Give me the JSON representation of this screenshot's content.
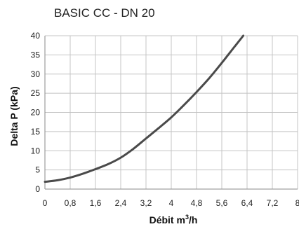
{
  "chart_data": {
    "type": "line",
    "title": "BASIC CC - DN 20",
    "xlabel_main": "Débit m",
    "xlabel_sup": "3",
    "xlabel_tail": "/h",
    "ylabel": "Delta P (kPa)",
    "xlim": [
      0,
      8
    ],
    "ylim": [
      0,
      40
    ],
    "x_ticks": [
      "0",
      "0,8",
      "1,6",
      "2,4",
      "3,2",
      "4",
      "4,8",
      "5,6",
      "6,4",
      "7,2",
      "8"
    ],
    "y_ticks": [
      "0",
      "5",
      "10",
      "15",
      "20",
      "25",
      "30",
      "35",
      "40"
    ],
    "grid": true,
    "series": [
      {
        "color": "#4a4a4a",
        "x": [
          0,
          0.4,
          0.8,
          1.2,
          1.6,
          2.0,
          2.4,
          2.8,
          3.2,
          3.6,
          4.0,
          4.4,
          4.8,
          5.2,
          5.6,
          6.0,
          6.28
        ],
        "y": [
          1.9,
          2.3,
          3.0,
          4.0,
          5.2,
          6.5,
          8.2,
          10.5,
          13.2,
          15.9,
          18.7,
          21.9,
          25.3,
          28.9,
          32.9,
          37.1,
          40.0
        ]
      }
    ]
  }
}
